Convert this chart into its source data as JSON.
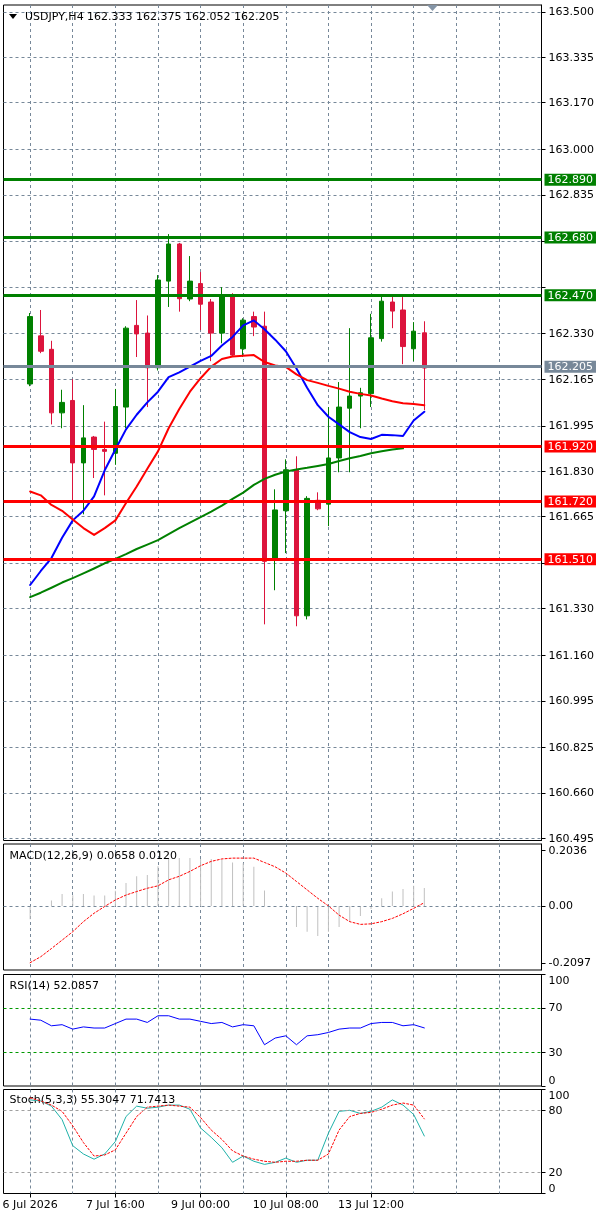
{
  "chart_data": [
    {
      "type": "candlestick",
      "title": "USDJPY,H4 162.333 162.375 162.052 162.205",
      "categories": [
        null,
        null,
        null,
        null,
        null,
        null,
        null,
        null,
        null,
        null,
        null,
        null,
        null,
        null,
        null,
        null,
        null,
        null,
        null,
        null,
        null,
        null,
        null,
        null,
        null,
        null,
        null,
        null,
        null,
        null,
        null,
        null,
        null,
        null,
        null,
        null,
        null,
        null,
        null,
        null,
        null,
        null,
        null,
        null,
        null,
        null,
        null,
        null,
        null
      ],
      "ohlc": [
        [
          162.147,
          162.405,
          162.139,
          162.392
        ],
        [
          162.322,
          162.416,
          162.259,
          162.266
        ],
        [
          162.273,
          162.304,
          162.0,
          162.042
        ],
        [
          162.042,
          162.126,
          161.986,
          162.08
        ],
        [
          162.087,
          162.164,
          161.714,
          161.86
        ],
        [
          161.86,
          162.07,
          161.673,
          161.951
        ],
        [
          161.954,
          161.958,
          161.805,
          161.909
        ],
        [
          161.909,
          162.01,
          161.742,
          161.902
        ],
        [
          161.895,
          162.129,
          161.853,
          162.065
        ],
        [
          162.063,
          162.357,
          161.986,
          162.35
        ],
        [
          162.36,
          162.452,
          162.245,
          162.329
        ],
        [
          162.332,
          162.396,
          162.063,
          162.206
        ],
        [
          162.206,
          162.543,
          162.196,
          162.525
        ],
        [
          162.521,
          162.692,
          162.427,
          162.656
        ],
        [
          162.656,
          162.66,
          162.41,
          162.457
        ],
        [
          162.456,
          162.612,
          162.448,
          162.521
        ],
        [
          162.512,
          162.554,
          162.343,
          162.437
        ],
        [
          162.445,
          162.456,
          162.23,
          162.332
        ],
        [
          162.332,
          162.499,
          162.295,
          162.47
        ],
        [
          162.47,
          162.477,
          162.245,
          162.252
        ],
        [
          162.275,
          162.386,
          162.245,
          162.379
        ],
        [
          162.392,
          162.41,
          162.321,
          162.354
        ],
        [
          162.357,
          162.41,
          161.273,
          161.502
        ],
        [
          161.507,
          161.764,
          161.397,
          161.689
        ],
        [
          161.686,
          161.873,
          161.532,
          161.835
        ],
        [
          161.835,
          161.884,
          161.266,
          161.304
        ],
        [
          161.304,
          161.739,
          161.291,
          161.731
        ],
        [
          161.724,
          161.753,
          161.688,
          161.693
        ],
        [
          161.71,
          162.063,
          161.63,
          161.878
        ],
        [
          161.878,
          162.154,
          161.826,
          162.063
        ],
        [
          162.059,
          162.35,
          161.826,
          162.103
        ],
        [
          162.103,
          162.133,
          161.986,
          162.115
        ],
        [
          162.112,
          162.402,
          162.063,
          162.315
        ],
        [
          162.312,
          162.467,
          162.301,
          162.448
        ],
        [
          162.445,
          162.472,
          162.35,
          162.412
        ],
        [
          162.416,
          162.463,
          162.219,
          162.283
        ],
        [
          162.275,
          162.372,
          162.23,
          162.339
        ],
        [
          162.333,
          162.375,
          162.052,
          162.205
        ],
        null,
        null,
        null,
        null,
        null,
        null,
        null,
        null,
        null,
        null,
        null
      ],
      "colors": [
        "#008000",
        "#dc143c",
        "#dc143c",
        "#008000",
        "#dc143c",
        "#008000",
        "#dc143c",
        "#dc143c",
        "#008000",
        "#008000",
        "#dc143c",
        "#dc143c",
        "#008000",
        "#008000",
        "#dc143c",
        "#008000",
        "#dc143c",
        "#dc143c",
        "#008000",
        "#dc143c",
        "#008000",
        "#dc143c",
        "#dc143c",
        "#008000",
        "#008000",
        "#dc143c",
        "#008000",
        "#dc143c",
        "#008000",
        "#008000",
        "#008000",
        "#008000",
        "#008000",
        "#008000",
        "#dc143c",
        "#dc143c",
        "#008000",
        "#dc143c",
        null,
        null,
        null,
        null,
        null,
        null,
        null,
        null,
        null,
        null,
        null
      ],
      "series": [
        {
          "type": "line",
          "color": "#0000ff",
          "values": [
            161.416,
            161.467,
            161.514,
            161.588,
            161.651,
            161.686,
            161.738,
            161.833,
            161.909,
            161.982,
            162.035,
            162.08,
            162.119,
            162.172,
            162.189,
            162.21,
            162.231,
            162.249,
            162.287,
            162.318,
            162.36,
            162.378,
            162.346,
            162.308,
            162.266,
            162.203,
            162.133,
            162.07,
            162.028,
            162.0,
            161.972,
            161.954,
            161.947,
            161.962,
            161.961,
            161.958,
            162.014,
            162.046,
            null,
            null,
            null,
            null,
            null,
            null,
            null,
            null,
            null,
            null,
            null
          ]
        },
        {
          "type": "line",
          "color": "#ff0000",
          "values": [
            161.756,
            161.742,
            161.707,
            161.686,
            161.654,
            161.623,
            161.598,
            161.623,
            161.651,
            161.714,
            161.774,
            161.839,
            161.902,
            161.986,
            162.056,
            162.119,
            162.168,
            162.21,
            162.238,
            162.247,
            162.25,
            162.252,
            162.227,
            162.214,
            162.209,
            162.182,
            162.161,
            162.151,
            162.14,
            162.13,
            162.119,
            162.111,
            162.105,
            162.094,
            162.084,
            162.077,
            162.074,
            162.07,
            null,
            null,
            null,
            null,
            null,
            null,
            null,
            null,
            null,
            null,
            null
          ]
        },
        {
          "type": "line",
          "color": "#008000",
          "values": [
            161.372,
            161.388,
            161.406,
            161.425,
            161.441,
            161.458,
            161.476,
            161.495,
            161.511,
            161.528,
            161.547,
            161.563,
            161.579,
            161.601,
            161.623,
            161.643,
            161.663,
            161.683,
            161.705,
            161.729,
            161.752,
            161.78,
            161.802,
            161.817,
            161.829,
            161.836,
            161.842,
            161.849,
            161.856,
            161.867,
            161.877,
            161.885,
            161.895,
            161.902,
            161.909,
            161.913,
            null,
            null,
            null,
            null,
            null,
            null,
            null,
            null,
            null,
            null,
            null,
            null,
            null
          ]
        }
      ],
      "ylim": [
        160.487,
        163.525
      ],
      "yticks": [
        {
          "value": 163.5,
          "label": "163.500"
        },
        163.335,
        {
          "value": 163.17,
          "label": "163.170"
        },
        {
          "value": 163,
          "label": "163.000"
        },
        162.835,
        {
          "value": 162.665,
          "label": null
        },
        {
          "value": 162.5,
          "label": null
        },
        {
          "value": 162.33,
          "label": "162.330"
        },
        162.165,
        161.995,
        {
          "value": 161.83,
          "label": "161.830"
        },
        161.665,
        {
          "value": 161.495,
          "label": null
        },
        {
          "value": 161.33,
          "label": "161.330"
        },
        {
          "value": 161.16,
          "label": "161.160"
        },
        160.995,
        160.825,
        {
          "value": 160.66,
          "label": "160.660"
        },
        160.495
      ],
      "ref_lines": [
        {
          "axis": "y",
          "value": 162.89,
          "label": "162.890",
          "color": "#008000"
        },
        {
          "axis": "y",
          "value": 162.68,
          "label": "162.680",
          "color": "#008000"
        },
        {
          "axis": "y",
          "value": 162.47,
          "label": "162.470",
          "color": "#008000"
        },
        {
          "axis": "y",
          "value": 161.92,
          "label": "161.920",
          "color": "#ff0000"
        },
        {
          "axis": "y",
          "value": 161.72,
          "label": "161.720",
          "color": "#ff0000"
        },
        {
          "axis": "y",
          "value": 161.51,
          "label": "161.510",
          "color": "#ff0000"
        },
        {
          "axis": "y",
          "value": 162.205,
          "label": "162.205",
          "color": "#778899"
        }
      ],
      "grid": true,
      "marker": "none",
      "tick_labels": "y"
    },
    {
      "type": "bar",
      "title": "MACD(12,26,9) 0.0658 0.0120",
      "categories": [
        null,
        null,
        null,
        null,
        null,
        null,
        null,
        null,
        null,
        null,
        null,
        null,
        null,
        null,
        null,
        null,
        null,
        null,
        null,
        null,
        null,
        null,
        null,
        null,
        null,
        null,
        null,
        null,
        null,
        null,
        null,
        null,
        null,
        null,
        null,
        null,
        null,
        null,
        null,
        null,
        null,
        null,
        null,
        null,
        null,
        null,
        null,
        null,
        null
      ],
      "series": [
        {
          "color": "#c0c0c0",
          "values": [
            -0.049,
            0.0,
            0.02,
            0.044,
            0.039,
            0.044,
            0.038,
            0.038,
            0.056,
            0.084,
            0.109,
            0.114,
            0.146,
            0.176,
            0.176,
            0.176,
            0.173,
            0.173,
            0.17,
            0.16,
            0.157,
            0.144,
            0.057,
            0.0,
            0.0,
            -0.078,
            -0.095,
            -0.111,
            -0.095,
            -0.078,
            -0.058,
            -0.037,
            -0.011,
            0.028,
            0.053,
            0.062,
            0.074,
            0.0658,
            null,
            null,
            null,
            null,
            null,
            null,
            null,
            null,
            null,
            null,
            null
          ]
        },
        {
          "type": "line",
          "color": "#ff0000",
          "line_style": "dotted",
          "values": [
            -0.209,
            -0.187,
            -0.157,
            -0.126,
            -0.095,
            -0.058,
            -0.027,
            -0.002,
            0.022,
            0.04,
            0.053,
            0.065,
            0.074,
            0.096,
            0.109,
            0.127,
            0.148,
            0.164,
            0.173,
            0.176,
            0.176,
            0.176,
            0.16,
            0.144,
            0.121,
            0.09,
            0.059,
            0.028,
            0.0,
            -0.034,
            -0.058,
            -0.068,
            -0.066,
            -0.058,
            -0.046,
            -0.029,
            -0.009,
            0.012,
            null,
            null,
            null,
            null,
            null,
            null,
            null,
            null,
            null,
            null,
            null
          ]
        }
      ],
      "ylim": [
        -0.236,
        0.228
      ],
      "yticks": [
        -0.2097,
        {
          "value": 0,
          "label": "0.00"
        },
        0.2036
      ],
      "ref_lines": [
        {
          "axis": "y",
          "value": 0,
          "color": "#778899",
          "line_style": "dashed"
        }
      ],
      "grid": "x",
      "marker": "none",
      "tick_labels": "y"
    },
    {
      "type": "line",
      "title": "RSI(14) 52.0857",
      "categories": [
        null,
        null,
        null,
        null,
        null,
        null,
        null,
        null,
        null,
        null,
        null,
        null,
        null,
        null,
        null,
        null,
        null,
        null,
        null,
        null,
        null,
        null,
        null,
        null,
        null,
        null,
        null,
        null,
        null,
        null,
        null,
        null,
        null,
        null,
        null,
        null,
        null,
        null,
        null,
        null,
        null,
        null,
        null,
        null,
        null,
        null,
        null,
        null,
        null
      ],
      "series": [
        {
          "color": "#0000ff",
          "values": [
            60,
            59,
            54,
            55,
            51,
            53,
            52,
            52,
            56,
            60,
            60,
            57,
            63,
            63,
            60,
            60,
            58,
            56,
            57,
            53,
            55,
            54,
            37,
            43,
            45,
            37,
            45,
            46,
            48,
            51,
            52,
            52,
            56,
            57,
            57,
            54,
            55,
            52.0857,
            null,
            null,
            null,
            null,
            null,
            null,
            null,
            null,
            null,
            null,
            null
          ]
        }
      ],
      "ylim": [
        0,
        100
      ],
      "yticks": [
        0,
        30,
        70,
        100
      ],
      "ref_lines": [
        {
          "axis": "y",
          "value": 70,
          "color": "#009900",
          "line_style": "dashed"
        },
        {
          "axis": "y",
          "value": 30,
          "color": "#009900",
          "line_style": "dashed"
        }
      ],
      "grid": "x",
      "marker": "none",
      "tick_labels": "y"
    },
    {
      "type": "line",
      "title": "Stoch(5,3,3) 55.3047 71.7413",
      "categories": [
        "6 Jul 2026",
        null,
        null,
        null,
        null,
        null,
        null,
        null,
        "7 Jul 16:00",
        null,
        null,
        null,
        null,
        null,
        null,
        null,
        "9 Jul 00:00",
        null,
        null,
        null,
        null,
        null,
        null,
        null,
        "10 Jul 08:00",
        null,
        null,
        null,
        null,
        null,
        null,
        null,
        "13 Jul 12:00",
        null,
        null,
        null,
        null,
        null,
        null,
        null,
        null,
        null,
        null,
        null,
        null,
        null,
        null,
        null,
        null
      ],
      "series": [
        {
          "color": "#20b2aa",
          "values": [
            90,
            89,
            84,
            71,
            46,
            38,
            33,
            38,
            50,
            74,
            84,
            82,
            83,
            85,
            85,
            81,
            63,
            54,
            44,
            30,
            36,
            31,
            28,
            30,
            34,
            30,
            32,
            32,
            58,
            79,
            80,
            77,
            79,
            83,
            90,
            85,
            76,
            55.3047,
            null,
            null,
            null,
            null,
            null,
            null,
            null,
            null,
            null,
            null,
            null
          ]
        },
        {
          "color": "#ff0000",
          "line_style": "dotted",
          "values": [
            92,
            89,
            85,
            79,
            65,
            49,
            36,
            37,
            42,
            58,
            74,
            83,
            84,
            85,
            84,
            83,
            73,
            61,
            52,
            41,
            36,
            33,
            31,
            30,
            31,
            31,
            32,
            32,
            38,
            61,
            74,
            77,
            78,
            81,
            85,
            87,
            85,
            71.7413,
            null,
            null,
            null,
            null,
            null,
            null,
            null,
            null,
            null,
            null,
            null
          ]
        }
      ],
      "ylim": [
        0,
        100
      ],
      "yticks": [
        0,
        20,
        80,
        100
      ],
      "ref_lines": [
        {
          "axis": "y",
          "value": 80,
          "color": "#a0a0a0",
          "line_style": "dashed"
        },
        {
          "axis": "y",
          "value": 20,
          "color": "#a0a0a0",
          "line_style": "dashed"
        }
      ],
      "grid": "x",
      "marker": "none"
    }
  ]
}
